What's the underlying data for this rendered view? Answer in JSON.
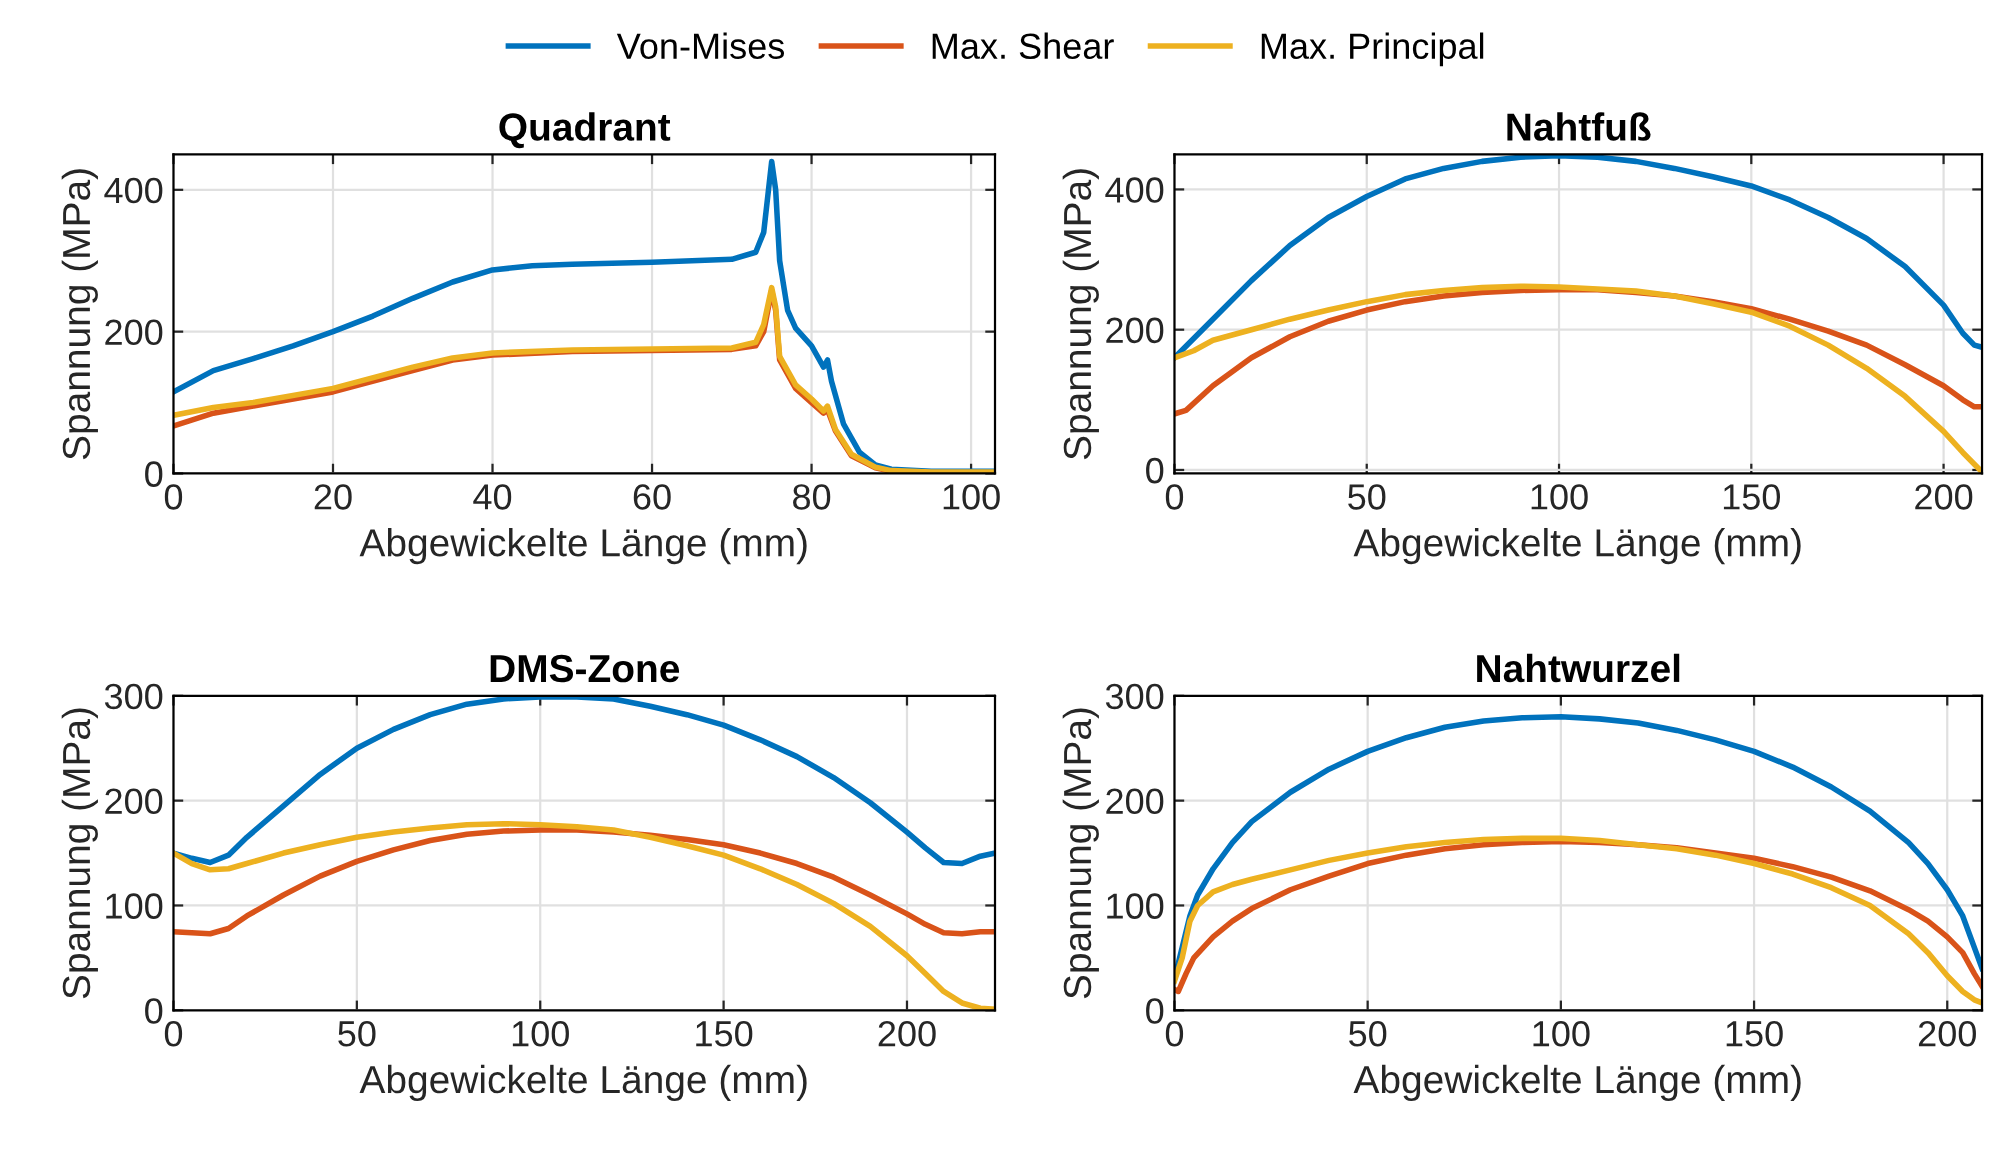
{
  "chart_data": [
    {
      "type": "line",
      "title": "Quadrant",
      "xlabel": "Abgewickelte Länge (mm)",
      "ylabel": "Spannung (MPa)",
      "xlim": [
        0,
        103
      ],
      "ylim": [
        0,
        450
      ],
      "xticks": [
        0,
        20,
        40,
        60,
        80,
        100
      ],
      "yticks": [
        0,
        200,
        400
      ],
      "grid": true,
      "legend": "top",
      "series": [
        {
          "name": "Von-Mises",
          "color": "#0072bd",
          "x": [
            0,
            5,
            10,
            15,
            20,
            25,
            30,
            35,
            40,
            45,
            50,
            60,
            70,
            73,
            74,
            75,
            75.5,
            76,
            77,
            78,
            80,
            81.5,
            82,
            82.5,
            84,
            86,
            88,
            90,
            95,
            103
          ],
          "values": [
            115,
            145,
            162,
            180,
            200,
            222,
            247,
            270,
            287,
            293,
            295,
            298,
            302,
            312,
            340,
            440,
            400,
            300,
            230,
            205,
            180,
            150,
            160,
            130,
            70,
            30,
            12,
            6,
            3,
            3
          ]
        },
        {
          "name": "Max. Shear",
          "color": "#d95319",
          "x": [
            0,
            5,
            10,
            20,
            30,
            35,
            40,
            50,
            70,
            73,
            74,
            75,
            75.5,
            76,
            78,
            80,
            81.5,
            82,
            83,
            85,
            88,
            90,
            95,
            103
          ],
          "values": [
            67,
            85,
            95,
            115,
            145,
            160,
            167,
            172,
            175,
            180,
            200,
            258,
            230,
            160,
            120,
            100,
            85,
            90,
            60,
            25,
            8,
            3,
            1,
            1
          ]
        },
        {
          "name": "Max. Principal",
          "color": "#edb120",
          "x": [
            0,
            5,
            10,
            20,
            30,
            35,
            40,
            50,
            70,
            73,
            74,
            75,
            75.5,
            76,
            78,
            80,
            81.5,
            82,
            83,
            85,
            88,
            90,
            95,
            103
          ],
          "values": [
            82,
            93,
            100,
            120,
            150,
            163,
            170,
            174,
            177,
            185,
            210,
            262,
            235,
            165,
            125,
            105,
            88,
            95,
            62,
            27,
            9,
            4,
            2,
            2
          ]
        }
      ]
    },
    {
      "type": "line",
      "title": "Nahtfuß",
      "xlabel": "Abgewickelte Länge (mm)",
      "ylabel": "Spannung (MPa)",
      "xlim": [
        0,
        210
      ],
      "ylim": [
        -5,
        450
      ],
      "xticks": [
        0,
        50,
        100,
        150,
        200
      ],
      "yticks": [
        0,
        200,
        400
      ],
      "grid": true,
      "series": [
        {
          "color": "#0072bd",
          "x": [
            0,
            10,
            20,
            30,
            40,
            50,
            60,
            70,
            80,
            90,
            100,
            110,
            120,
            130,
            140,
            150,
            160,
            170,
            180,
            190,
            200,
            205,
            208,
            210
          ],
          "values": [
            160,
            215,
            270,
            320,
            360,
            390,
            415,
            430,
            440,
            446,
            448,
            446,
            440,
            430,
            418,
            405,
            385,
            360,
            330,
            290,
            235,
            195,
            178,
            175
          ]
        },
        {
          "color": "#d95319",
          "x": [
            0,
            3,
            10,
            20,
            30,
            40,
            50,
            60,
            70,
            80,
            90,
            100,
            110,
            120,
            130,
            140,
            150,
            160,
            170,
            180,
            190,
            200,
            205,
            208,
            210
          ],
          "values": [
            80,
            85,
            120,
            160,
            190,
            212,
            228,
            240,
            248,
            253,
            256,
            257,
            257,
            253,
            248,
            240,
            230,
            215,
            198,
            178,
            150,
            120,
            100,
            90,
            90
          ]
        },
        {
          "color": "#edb120",
          "x": [
            0,
            5,
            10,
            20,
            30,
            40,
            50,
            60,
            70,
            80,
            90,
            100,
            110,
            120,
            130,
            140,
            150,
            160,
            170,
            180,
            190,
            200,
            205,
            210
          ],
          "values": [
            160,
            170,
            185,
            200,
            215,
            228,
            240,
            250,
            256,
            260,
            262,
            261,
            258,
            255,
            248,
            237,
            225,
            205,
            178,
            145,
            105,
            55,
            25,
            -3
          ]
        }
      ]
    },
    {
      "type": "line",
      "title": "DMS-Zone",
      "xlabel": "Abgewickelte Länge (mm)",
      "ylabel": "Spannung (MPa)",
      "xlim": [
        0,
        224
      ],
      "ylim": [
        0,
        300
      ],
      "xticks": [
        0,
        50,
        100,
        150,
        200
      ],
      "yticks": [
        0,
        100,
        200,
        300
      ],
      "grid": true,
      "series": [
        {
          "color": "#0072bd",
          "x": [
            0,
            5,
            10,
            15,
            20,
            30,
            40,
            50,
            60,
            70,
            80,
            90,
            100,
            110,
            120,
            130,
            140,
            150,
            160,
            170,
            180,
            190,
            200,
            205,
            210,
            215,
            220,
            224
          ],
          "values": [
            150,
            145,
            141,
            148,
            165,
            195,
            225,
            250,
            268,
            282,
            292,
            297,
            299,
            299,
            297,
            290,
            282,
            272,
            258,
            242,
            222,
            198,
            170,
            155,
            141,
            140,
            147,
            150
          ]
        },
        {
          "color": "#d95319",
          "x": [
            0,
            5,
            10,
            15,
            20,
            30,
            40,
            50,
            60,
            70,
            80,
            90,
            100,
            110,
            120,
            130,
            140,
            150,
            160,
            170,
            180,
            190,
            200,
            205,
            210,
            215,
            220,
            224
          ],
          "values": [
            75,
            74,
            73,
            78,
            90,
            110,
            128,
            142,
            153,
            162,
            168,
            171,
            172,
            172,
            170,
            167,
            163,
            158,
            150,
            140,
            127,
            110,
            92,
            82,
            74,
            73,
            75,
            75
          ]
        },
        {
          "color": "#edb120",
          "x": [
            0,
            5,
            10,
            15,
            20,
            30,
            40,
            50,
            60,
            70,
            80,
            90,
            100,
            110,
            120,
            130,
            140,
            150,
            160,
            170,
            180,
            190,
            200,
            205,
            210,
            215,
            220,
            224
          ],
          "values": [
            150,
            140,
            134,
            135,
            140,
            150,
            158,
            165,
            170,
            174,
            177,
            178,
            177,
            175,
            172,
            165,
            157,
            148,
            135,
            120,
            102,
            80,
            52,
            35,
            18,
            7,
            2,
            1
          ]
        }
      ]
    },
    {
      "type": "line",
      "title": "Nahtwurzel",
      "xlabel": "Abgewickelte Länge (mm)",
      "ylabel": "Spannung (MPa)",
      "xlim": [
        0,
        209
      ],
      "ylim": [
        0,
        300
      ],
      "xticks": [
        0,
        50,
        100,
        150,
        200
      ],
      "yticks": [
        0,
        100,
        200,
        300
      ],
      "grid": true,
      "series": [
        {
          "color": "#0072bd",
          "x": [
            0,
            2,
            4,
            6,
            10,
            15,
            20,
            30,
            40,
            50,
            60,
            70,
            80,
            90,
            100,
            110,
            120,
            130,
            140,
            150,
            160,
            170,
            180,
            190,
            195,
            200,
            204,
            207,
            209
          ],
          "values": [
            30,
            60,
            90,
            110,
            135,
            160,
            180,
            208,
            230,
            247,
            260,
            270,
            276,
            279,
            280,
            278,
            274,
            267,
            258,
            247,
            232,
            213,
            190,
            160,
            140,
            115,
            90,
            60,
            40
          ]
        },
        {
          "color": "#d95319",
          "x": [
            0,
            1,
            3,
            5,
            10,
            15,
            20,
            30,
            40,
            50,
            60,
            70,
            80,
            90,
            100,
            110,
            120,
            130,
            140,
            150,
            160,
            170,
            180,
            190,
            195,
            200,
            204,
            207,
            209
          ],
          "values": [
            20,
            18,
            35,
            50,
            70,
            85,
            97,
            115,
            128,
            140,
            148,
            154,
            158,
            160,
            161,
            160,
            158,
            155,
            150,
            145,
            137,
            127,
            114,
            96,
            85,
            70,
            55,
            35,
            23
          ]
        },
        {
          "color": "#edb120",
          "x": [
            0,
            2,
            4,
            6,
            10,
            15,
            20,
            30,
            40,
            50,
            60,
            70,
            80,
            90,
            100,
            110,
            120,
            130,
            140,
            150,
            160,
            170,
            180,
            190,
            195,
            200,
            204,
            207,
            209
          ],
          "values": [
            28,
            50,
            85,
            100,
            113,
            120,
            125,
            134,
            143,
            150,
            156,
            160,
            163,
            164,
            164,
            162,
            158,
            154,
            148,
            140,
            130,
            117,
            100,
            73,
            55,
            33,
            18,
            10,
            7
          ]
        }
      ]
    }
  ]
}
